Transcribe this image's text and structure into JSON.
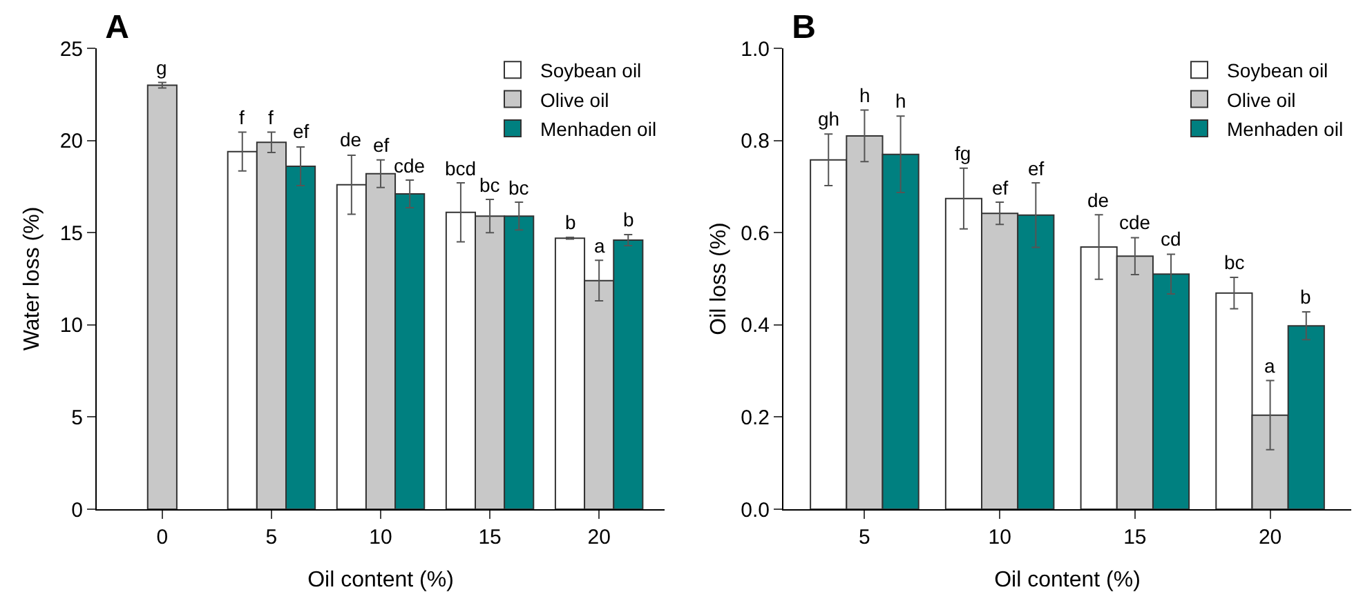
{
  "chart_data": [
    {
      "type": "bar",
      "title": "A",
      "xlabel": "Oil content (%)",
      "ylabel": "Water loss (%)",
      "categories": [
        "0",
        "5",
        "10",
        "15",
        "20"
      ],
      "ylim": [
        0,
        25
      ],
      "yticks": [
        0,
        5,
        10,
        15,
        20,
        25
      ],
      "grid": false,
      "legend": "top right",
      "series": [
        {
          "name": "Soybean oil",
          "color": "#ffffff",
          "values": [
            null,
            19.4,
            17.6,
            16.1,
            14.7
          ],
          "errors": [
            null,
            1.05,
            1.6,
            1.6,
            0.05
          ],
          "value_labels": [
            null,
            "f",
            "de",
            "bcd",
            "b"
          ]
        },
        {
          "name": "Olive oil",
          "color": "#c8c8c8",
          "values": [
            23.0,
            19.9,
            18.2,
            15.9,
            12.4
          ],
          "errors": [
            0.15,
            0.55,
            0.75,
            0.9,
            1.1
          ],
          "value_labels": [
            "g",
            "f",
            "ef",
            "bc",
            "a"
          ]
        },
        {
          "name": "Menhaden oil",
          "color": "#008080",
          "values": [
            null,
            18.6,
            17.1,
            15.9,
            14.6
          ],
          "errors": [
            null,
            1.05,
            0.75,
            0.75,
            0.3
          ],
          "value_labels": [
            null,
            "ef",
            "cde",
            "bc",
            "b"
          ]
        }
      ]
    },
    {
      "type": "bar",
      "title": "B",
      "xlabel": "Oil content (%)",
      "ylabel": "Oil loss (%)",
      "categories": [
        "5",
        "10",
        "15",
        "20"
      ],
      "ylim": [
        0,
        1.0
      ],
      "yticks": [
        {
          "value": 0,
          "label": "0.0"
        },
        {
          "value": 0.2,
          "label": "0.2"
        },
        {
          "value": 0.4,
          "label": "0.4"
        },
        {
          "value": 0.6,
          "label": "0.6"
        },
        {
          "value": 0.8,
          "label": "0.8"
        },
        {
          "value": 1.0,
          "label": "1.0"
        }
      ],
      "grid": false,
      "legend": "top right",
      "series": [
        {
          "name": "Soybean oil",
          "color": "#ffffff",
          "values": [
            0.758,
            0.674,
            0.569,
            0.469
          ],
          "errors": [
            0.056,
            0.066,
            0.07,
            0.034
          ],
          "value_labels": [
            "gh",
            "fg",
            "de",
            "bc"
          ]
        },
        {
          "name": "Olive oil",
          "color": "#c8c8c8",
          "values": [
            0.81,
            0.642,
            0.549,
            0.204
          ],
          "errors": [
            0.056,
            0.024,
            0.04,
            0.075
          ],
          "value_labels": [
            "h",
            "ef",
            "cde",
            "a"
          ]
        },
        {
          "name": "Menhaden oil",
          "color": "#008080",
          "values": [
            0.77,
            0.638,
            0.51,
            0.398
          ],
          "errors": [
            0.083,
            0.07,
            0.043,
            0.03
          ],
          "value_labels": [
            "h",
            "ef",
            "cd",
            "b"
          ]
        }
      ]
    }
  ]
}
